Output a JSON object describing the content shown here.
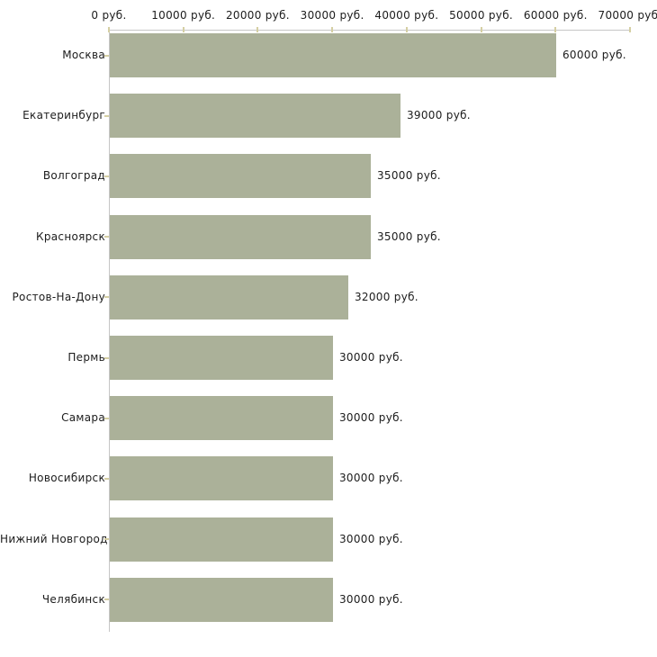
{
  "chart_data": {
    "type": "bar",
    "orientation": "horizontal",
    "title": "",
    "xlabel": "",
    "ylabel": "",
    "categories": [
      "Москва",
      "Екатеринбург",
      "Волгоград",
      "Красноярск",
      "Ростов-На-Дону",
      "Пермь",
      "Самара",
      "Новосибирск",
      "Нижний Новгород",
      "Челябинск"
    ],
    "values": [
      60000,
      39000,
      35000,
      35000,
      32000,
      30000,
      30000,
      30000,
      30000,
      30000
    ],
    "value_labels": [
      "60000 руб.",
      "39000 руб.",
      "35000 руб.",
      "35000 руб.",
      "32000 руб.",
      "30000 руб.",
      "30000 руб.",
      "30000 руб.",
      "30000 руб.",
      "30000 руб."
    ],
    "x_tick_values": [
      0,
      10000,
      20000,
      30000,
      40000,
      50000,
      60000,
      70000
    ],
    "x_tick_labels": [
      "0 руб.",
      "10000 руб.",
      "20000 руб.",
      "30000 руб.",
      "40000 руб.",
      "50000 руб.",
      "60000 руб.",
      "70000 руб."
    ],
    "xlim": [
      0,
      70000
    ],
    "grid": false,
    "legend": false,
    "colors": {
      "bar": "#abb199",
      "axis": "#c6c6c6",
      "tick": "#d5cfa3",
      "text": "#1c1c1c",
      "background": "#ffffff"
    }
  }
}
